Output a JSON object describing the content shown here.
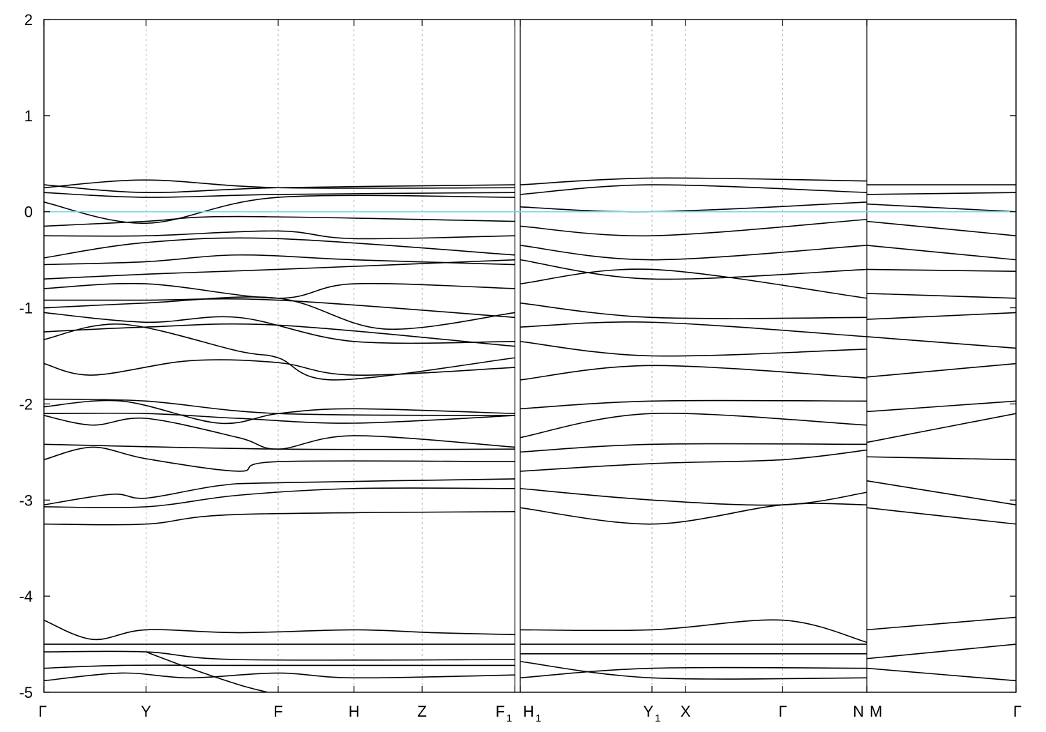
{
  "chart_data": {
    "type": "line",
    "title": "",
    "xlabel": "",
    "ylabel": "",
    "ylim": [
      -5,
      2
    ],
    "yticks": [
      -5,
      -4,
      -3,
      -2,
      -1,
      0,
      1,
      2
    ],
    "ytick_labels": [
      "-5",
      "-4",
      "-3",
      "-2",
      "-1",
      "0",
      "1",
      "2"
    ],
    "xlim": [
      0,
      1
    ],
    "high_symmetry_points": [
      {
        "label": "Γ",
        "sub": "",
        "x": 0.0
      },
      {
        "label": "Y",
        "sub": "",
        "x": 0.105
      },
      {
        "label": "F",
        "sub": "",
        "x": 0.241
      },
      {
        "label": "H",
        "sub": "",
        "x": 0.319
      },
      {
        "label": "Z",
        "sub": "",
        "x": 0.389
      },
      {
        "label": "F",
        "sub": "1",
        "x": 0.4845
      },
      {
        "label": "H",
        "sub": "1",
        "x": 0.49
      },
      {
        "label": "Y",
        "sub": "1",
        "x": 0.6255
      },
      {
        "label": "X",
        "sub": "",
        "x": 0.66
      },
      {
        "label": "Γ",
        "sub": "",
        "x": 0.76
      },
      {
        "label": "N",
        "sub": "",
        "x": 0.8465
      },
      {
        "label": "M",
        "sub": "",
        "x": 0.8465
      },
      {
        "label": "Γ",
        "sub": "",
        "x": 1.0
      }
    ],
    "segments": [
      [
        0.0,
        0.4845
      ],
      [
        0.49,
        0.8465
      ],
      [
        0.8465,
        1.0
      ]
    ],
    "fermi_level": 0.0,
    "fermi_color": "#7fd3ea",
    "band_color": "#000000",
    "grid": "vertical dashed at high-symmetry points",
    "legend": "none",
    "bands": [
      {
        "seg": 0,
        "x": [
          0.0,
          0.05,
          0.105,
          0.2,
          0.319,
          0.4,
          0.4845
        ],
        "y": [
          -4.25,
          -4.45,
          -4.35,
          -4.38,
          -4.35,
          -4.38,
          -4.4
        ]
      },
      {
        "seg": 0,
        "x": [
          0.0,
          0.241,
          0.4845
        ],
        "y": [
          -4.5,
          -4.5,
          -4.5
        ]
      },
      {
        "seg": 0,
        "x": [
          0.0,
          0.105,
          0.2,
          0.4845
        ],
        "y": [
          -4.58,
          -4.58,
          -4.66,
          -4.66
        ]
      },
      {
        "seg": 0,
        "x": [
          0.0,
          0.08,
          0.2,
          0.319,
          0.4845
        ],
        "y": [
          -4.75,
          -4.72,
          -4.72,
          -4.72,
          -4.72
        ]
      },
      {
        "seg": 0,
        "x": [
          0.0,
          0.08,
          0.15,
          0.241,
          0.319,
          0.4845
        ],
        "y": [
          -4.88,
          -4.8,
          -4.85,
          -4.8,
          -4.85,
          -4.82
        ]
      },
      {
        "seg": 0,
        "x": [
          0.105,
          0.15,
          0.2,
          0.23
        ],
        "y": [
          -4.58,
          -4.75,
          -4.92,
          -5.0
        ]
      },
      {
        "seg": 0,
        "x": [
          0.0,
          0.105,
          0.2,
          0.4845
        ],
        "y": [
          -3.25,
          -3.25,
          -3.15,
          -3.12
        ]
      },
      {
        "seg": 0,
        "x": [
          0.0,
          0.105,
          0.2,
          0.319,
          0.4845
        ],
        "y": [
          -3.07,
          -3.07,
          -2.95,
          -2.88,
          -2.88
        ]
      },
      {
        "seg": 0,
        "x": [
          0.0,
          0.07,
          0.105,
          0.18,
          0.241,
          0.4845
        ],
        "y": [
          -3.05,
          -2.94,
          -2.98,
          -2.85,
          -2.82,
          -2.78
        ]
      },
      {
        "seg": 0,
        "x": [
          0.0,
          0.05,
          0.105,
          0.2,
          0.241,
          0.4845
        ],
        "y": [
          -2.58,
          -2.45,
          -2.57,
          -2.7,
          -2.6,
          -2.6
        ]
      },
      {
        "seg": 0,
        "x": [
          0.0,
          0.241,
          0.4845
        ],
        "y": [
          -2.42,
          -2.47,
          -2.47
        ]
      },
      {
        "seg": 0,
        "x": [
          0.0,
          0.05,
          0.105,
          0.2,
          0.241,
          0.319,
          0.4845
        ],
        "y": [
          -2.12,
          -2.22,
          -2.15,
          -2.35,
          -2.47,
          -2.33,
          -2.45
        ]
      },
      {
        "seg": 0,
        "x": [
          0.0,
          0.105,
          0.2,
          0.319,
          0.4845
        ],
        "y": [
          -2.1,
          -2.1,
          -2.15,
          -2.2,
          -2.12
        ]
      },
      {
        "seg": 0,
        "x": [
          0.0,
          0.08,
          0.18,
          0.241,
          0.319,
          0.4845
        ],
        "y": [
          -2.03,
          -1.97,
          -2.2,
          -2.1,
          -2.05,
          -2.1
        ]
      },
      {
        "seg": 0,
        "x": [
          0.0,
          0.105,
          0.241,
          0.4845
        ],
        "y": [
          -1.95,
          -1.97,
          -2.1,
          -2.12
        ]
      },
      {
        "seg": 0,
        "x": [
          0.0,
          0.05,
          0.15,
          0.241,
          0.319,
          0.4845
        ],
        "y": [
          -1.58,
          -1.7,
          -1.55,
          -1.57,
          -1.7,
          -1.62
        ]
      },
      {
        "seg": 0,
        "x": [
          0.0,
          0.08,
          0.2,
          0.241,
          0.3,
          0.4845
        ],
        "y": [
          -1.33,
          -1.17,
          -1.45,
          -1.52,
          -1.75,
          -1.52
        ]
      },
      {
        "seg": 0,
        "x": [
          0.0,
          0.105,
          0.241,
          0.4845
        ],
        "y": [
          -1.25,
          -1.2,
          -1.18,
          -1.4
        ]
      },
      {
        "seg": 0,
        "x": [
          0.0,
          0.105,
          0.2,
          0.319,
          0.4845
        ],
        "y": [
          -1.05,
          -1.15,
          -1.1,
          -1.35,
          -1.35
        ]
      },
      {
        "seg": 0,
        "x": [
          0.0,
          0.105,
          0.241,
          0.35,
          0.4845
        ],
        "y": [
          -1.0,
          -0.95,
          -0.9,
          -1.22,
          -1.05
        ]
      },
      {
        "seg": 0,
        "x": [
          0.0,
          0.105,
          0.241,
          0.4845
        ],
        "y": [
          -0.92,
          -0.92,
          -0.92,
          -1.1
        ]
      },
      {
        "seg": 0,
        "x": [
          0.0,
          0.105,
          0.241,
          0.319,
          0.4845
        ],
        "y": [
          -0.8,
          -0.75,
          -0.9,
          -0.75,
          -0.8
        ]
      },
      {
        "seg": 0,
        "x": [
          0.0,
          0.105,
          0.241,
          0.4845
        ],
        "y": [
          -0.7,
          -0.65,
          -0.6,
          -0.5
        ]
      },
      {
        "seg": 0,
        "x": [
          0.0,
          0.105,
          0.2,
          0.319,
          0.4845
        ],
        "y": [
          -0.55,
          -0.52,
          -0.45,
          -0.5,
          -0.55
        ]
      },
      {
        "seg": 0,
        "x": [
          0.0,
          0.105,
          0.241,
          0.4845
        ],
        "y": [
          -0.48,
          -0.32,
          -0.28,
          -0.45
        ]
      },
      {
        "seg": 0,
        "x": [
          0.0,
          0.105,
          0.241,
          0.319,
          0.4845
        ],
        "y": [
          -0.25,
          -0.25,
          -0.2,
          -0.28,
          -0.25
        ]
      },
      {
        "seg": 0,
        "x": [
          0.0,
          0.105,
          0.2,
          0.4845
        ],
        "y": [
          -0.15,
          -0.1,
          -0.05,
          -0.1
        ]
      },
      {
        "seg": 0,
        "x": [
          0.0,
          0.105,
          0.241,
          0.4845
        ],
        "y": [
          0.1,
          -0.12,
          0.15,
          0.15
        ]
      },
      {
        "seg": 0,
        "x": [
          0.0,
          0.105,
          0.241,
          0.4845
        ],
        "y": [
          0.2,
          0.15,
          0.18,
          0.2
        ]
      },
      {
        "seg": 0,
        "x": [
          0.0,
          0.105,
          0.241,
          0.4845
        ],
        "y": [
          0.25,
          0.33,
          0.25,
          0.25
        ]
      },
      {
        "seg": 0,
        "x": [
          0.0,
          0.105,
          0.241,
          0.4845
        ],
        "y": [
          0.28,
          0.2,
          0.25,
          0.28
        ]
      },
      {
        "seg": 1,
        "x": [
          0.49,
          0.6255,
          0.76,
          0.8465
        ],
        "y": [
          -4.35,
          -4.35,
          -4.25,
          -4.48
        ]
      },
      {
        "seg": 1,
        "x": [
          0.49,
          0.6255,
          0.8465
        ],
        "y": [
          -4.5,
          -4.5,
          -4.5
        ]
      },
      {
        "seg": 1,
        "x": [
          0.49,
          0.6255,
          0.8465
        ],
        "y": [
          -4.6,
          -4.6,
          -4.6
        ]
      },
      {
        "seg": 1,
        "x": [
          0.49,
          0.6255,
          0.8465
        ],
        "y": [
          -4.85,
          -4.75,
          -4.75
        ]
      },
      {
        "seg": 1,
        "x": [
          0.49,
          0.6255,
          0.8465
        ],
        "y": [
          -4.68,
          -4.85,
          -4.85
        ]
      },
      {
        "seg": 1,
        "x": [
          0.49,
          0.6255,
          0.76,
          0.8465
        ],
        "y": [
          -3.08,
          -3.25,
          -3.05,
          -3.05
        ]
      },
      {
        "seg": 1,
        "x": [
          0.49,
          0.6255,
          0.76,
          0.8465
        ],
        "y": [
          -2.88,
          -3.0,
          -3.05,
          -2.92
        ]
      },
      {
        "seg": 1,
        "x": [
          0.49,
          0.6255,
          0.76,
          0.8465
        ],
        "y": [
          -2.7,
          -2.62,
          -2.58,
          -2.48
        ]
      },
      {
        "seg": 1,
        "x": [
          0.49,
          0.6255,
          0.8465
        ],
        "y": [
          -2.5,
          -2.42,
          -2.42
        ]
      },
      {
        "seg": 1,
        "x": [
          0.49,
          0.6255,
          0.8465
        ],
        "y": [
          -2.35,
          -2.1,
          -2.22
        ]
      },
      {
        "seg": 1,
        "x": [
          0.49,
          0.6255,
          0.8465
        ],
        "y": [
          -2.05,
          -1.97,
          -1.97
        ]
      },
      {
        "seg": 1,
        "x": [
          0.49,
          0.6255,
          0.8465
        ],
        "y": [
          -1.75,
          -1.6,
          -1.73
        ]
      },
      {
        "seg": 1,
        "x": [
          0.49,
          0.6255,
          0.8465
        ],
        "y": [
          -1.35,
          -1.5,
          -1.43
        ]
      },
      {
        "seg": 1,
        "x": [
          0.49,
          0.6255,
          0.8465
        ],
        "y": [
          -1.2,
          -1.15,
          -1.3
        ]
      },
      {
        "seg": 1,
        "x": [
          0.49,
          0.6255,
          0.8465
        ],
        "y": [
          -0.95,
          -1.1,
          -1.1
        ]
      },
      {
        "seg": 1,
        "x": [
          0.49,
          0.6255,
          0.8465
        ],
        "y": [
          -0.75,
          -0.6,
          -0.9
        ]
      },
      {
        "seg": 1,
        "x": [
          0.49,
          0.6255,
          0.8465
        ],
        "y": [
          -0.5,
          -0.7,
          -0.6
        ]
      },
      {
        "seg": 1,
        "x": [
          0.49,
          0.6255,
          0.8465
        ],
        "y": [
          -0.35,
          -0.5,
          -0.35
        ]
      },
      {
        "seg": 1,
        "x": [
          0.49,
          0.6255,
          0.8465
        ],
        "y": [
          -0.15,
          -0.25,
          -0.08
        ]
      },
      {
        "seg": 1,
        "x": [
          0.49,
          0.6255,
          0.8465
        ],
        "y": [
          0.05,
          0.0,
          0.1
        ]
      },
      {
        "seg": 1,
        "x": [
          0.49,
          0.6255,
          0.8465
        ],
        "y": [
          0.18,
          0.28,
          0.2
        ]
      },
      {
        "seg": 1,
        "x": [
          0.49,
          0.6255,
          0.8465
        ],
        "y": [
          0.28,
          0.35,
          0.32
        ]
      },
      {
        "seg": 2,
        "x": [
          0.8465,
          1.0
        ],
        "y": [
          -4.35,
          -4.22
        ]
      },
      {
        "seg": 2,
        "x": [
          0.8465,
          1.0
        ],
        "y": [
          -4.65,
          -4.5
        ]
      },
      {
        "seg": 2,
        "x": [
          0.8465,
          1.0
        ],
        "y": [
          -4.75,
          -4.88
        ]
      },
      {
        "seg": 2,
        "x": [
          0.8465,
          1.0
        ],
        "y": [
          -3.08,
          -3.25
        ]
      },
      {
        "seg": 2,
        "x": [
          0.8465,
          1.0
        ],
        "y": [
          -2.8,
          -3.05
        ]
      },
      {
        "seg": 2,
        "x": [
          0.8465,
          1.0
        ],
        "y": [
          -2.55,
          -2.58
        ]
      },
      {
        "seg": 2,
        "x": [
          0.8465,
          1.0
        ],
        "y": [
          -2.4,
          -2.1
        ]
      },
      {
        "seg": 2,
        "x": [
          0.8465,
          1.0
        ],
        "y": [
          -2.08,
          -1.97
        ]
      },
      {
        "seg": 2,
        "x": [
          0.8465,
          1.0
        ],
        "y": [
          -1.72,
          -1.58
        ]
      },
      {
        "seg": 2,
        "x": [
          0.8465,
          1.0
        ],
        "y": [
          -1.3,
          -1.42
        ]
      },
      {
        "seg": 2,
        "x": [
          0.8465,
          1.0
        ],
        "y": [
          -1.12,
          -1.05
        ]
      },
      {
        "seg": 2,
        "x": [
          0.8465,
          1.0
        ],
        "y": [
          -0.85,
          -0.9
        ]
      },
      {
        "seg": 2,
        "x": [
          0.8465,
          1.0
        ],
        "y": [
          -0.6,
          -0.62
        ]
      },
      {
        "seg": 2,
        "x": [
          0.8465,
          1.0
        ],
        "y": [
          -0.35,
          -0.5
        ]
      },
      {
        "seg": 2,
        "x": [
          0.8465,
          1.0
        ],
        "y": [
          -0.1,
          -0.25
        ]
      },
      {
        "seg": 2,
        "x": [
          0.8465,
          1.0
        ],
        "y": [
          0.08,
          0.0
        ]
      },
      {
        "seg": 2,
        "x": [
          0.8465,
          1.0
        ],
        "y": [
          0.18,
          0.2
        ]
      },
      {
        "seg": 2,
        "x": [
          0.8465,
          1.0
        ],
        "y": [
          0.28,
          0.28
        ]
      }
    ]
  }
}
